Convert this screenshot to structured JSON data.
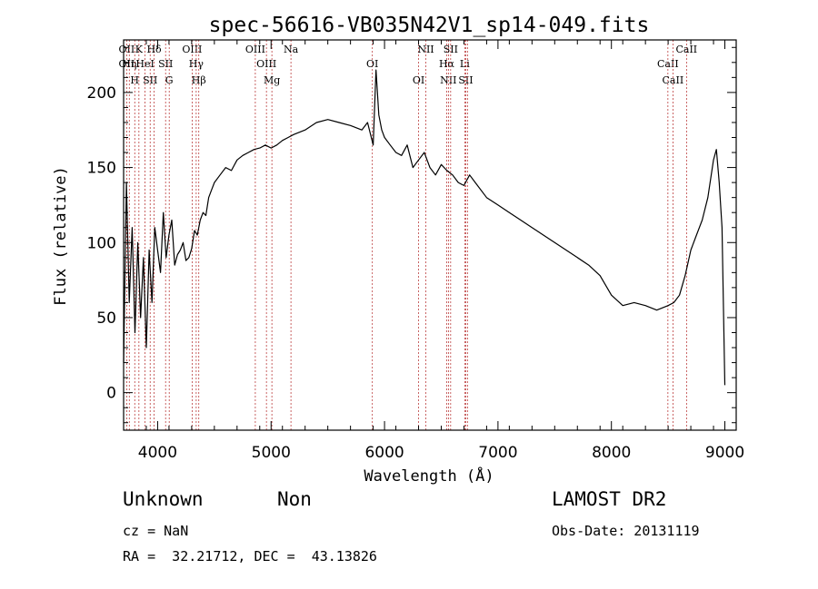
{
  "chart_data": {
    "type": "line",
    "title": "spec-56616-VB035N42V1_sp14-049.fits",
    "xlabel": "Wavelength (Å)",
    "ylabel": "Flux (relative)",
    "xlim": [
      3700,
      9100
    ],
    "ylim": [
      -25,
      235
    ],
    "xticks": [
      4000,
      5000,
      6000,
      7000,
      8000,
      9000
    ],
    "yticks": [
      0,
      50,
      100,
      150,
      200
    ],
    "grid": false,
    "series": [
      {
        "values_x": [
          3700,
          3725,
          3750,
          3775,
          3800,
          3825,
          3850,
          3875,
          3900,
          3925,
          3950,
          3975,
          4000,
          4025,
          4050,
          4075,
          4100,
          4125,
          4150,
          4175,
          4200,
          4225,
          4250,
          4275,
          4300,
          4325,
          4350,
          4375,
          4400,
          4425,
          4450,
          4475,
          4500,
          4550,
          4600,
          4650,
          4700,
          4750,
          4800,
          4850,
          4900,
          4950,
          5000,
          5050,
          5100,
          5150,
          5200,
          5300,
          5400,
          5500,
          5600,
          5700,
          5800,
          5850,
          5900,
          5925,
          5950,
          5975,
          6000,
          6050,
          6100,
          6150,
          6200,
          6250,
          6300,
          6350,
          6400,
          6450,
          6500,
          6550,
          6600,
          6650,
          6700,
          6750,
          6800,
          6900,
          7000,
          7100,
          7200,
          7300,
          7400,
          7500,
          7600,
          7700,
          7800,
          7900,
          8000,
          8100,
          8200,
          8300,
          8400,
          8500,
          8550,
          8600,
          8650,
          8700,
          8750,
          8800,
          8850,
          8900,
          8925,
          8950,
          8975,
          9000
        ],
        "values_y": [
          20,
          140,
          60,
          110,
          40,
          100,
          50,
          90,
          30,
          95,
          60,
          110,
          95,
          80,
          120,
          90,
          105,
          115,
          85,
          92,
          95,
          100,
          88,
          90,
          96,
          108,
          105,
          115,
          120,
          118,
          130,
          135,
          140,
          145,
          150,
          148,
          155,
          158,
          160,
          162,
          163,
          165,
          163,
          165,
          168,
          170,
          172,
          175,
          180,
          182,
          180,
          178,
          175,
          180,
          165,
          215,
          185,
          175,
          170,
          165,
          160,
          158,
          165,
          150,
          155,
          160,
          150,
          145,
          152,
          148,
          145,
          140,
          138,
          145,
          140,
          130,
          125,
          120,
          115,
          110,
          105,
          100,
          95,
          90,
          85,
          78,
          65,
          58,
          60,
          58,
          55,
          58,
          60,
          65,
          78,
          95,
          105,
          115,
          130,
          155,
          162,
          140,
          110,
          5
        ]
      }
    ],
    "lines": [
      {
        "wl": 3727,
        "labels": [
          "OII",
          "OII"
        ]
      },
      {
        "wl": 3750,
        "labels": [
          "Hη"
        ]
      },
      {
        "wl": 3798,
        "labels": [
          "H"
        ]
      },
      {
        "wl": 3835,
        "labels": [
          "K"
        ]
      },
      {
        "wl": 3889,
        "labels": [
          "HeI"
        ]
      },
      {
        "wl": 3934,
        "labels": [
          "SII"
        ]
      },
      {
        "wl": 3969,
        "labels": [
          "Hδ"
        ]
      },
      {
        "wl": 4070,
        "labels": [
          "SII"
        ]
      },
      {
        "wl": 4102,
        "labels": [
          "G"
        ]
      },
      {
        "wl": 4304,
        "labels": [
          "OIII"
        ]
      },
      {
        "wl": 4340,
        "labels": [
          "Hγ"
        ]
      },
      {
        "wl": 4363,
        "labels": [
          "Hβ"
        ]
      },
      {
        "wl": 4861,
        "labels": [
          "OIII"
        ]
      },
      {
        "wl": 4959,
        "labels": [
          "OIII"
        ]
      },
      {
        "wl": 5007,
        "labels": [
          "Mg"
        ]
      },
      {
        "wl": 5175,
        "labels": [
          "Na"
        ]
      },
      {
        "wl": 5893,
        "labels": [
          "OI"
        ]
      },
      {
        "wl": 6300,
        "labels": [
          "OI"
        ]
      },
      {
        "wl": 6364,
        "labels": [
          "NII"
        ]
      },
      {
        "wl": 6548,
        "labels": [
          "Hα"
        ]
      },
      {
        "wl": 6563,
        "labels": [
          "NII"
        ]
      },
      {
        "wl": 6583,
        "labels": [
          "SII"
        ]
      },
      {
        "wl": 6707,
        "labels": [
          "Li"
        ]
      },
      {
        "wl": 6716,
        "labels": [
          "SII"
        ]
      },
      {
        "wl": 6731,
        "labels": []
      },
      {
        "wl": 8498,
        "labels": [
          "CaII"
        ]
      },
      {
        "wl": 8542,
        "labels": [
          "CaII"
        ]
      },
      {
        "wl": 8662,
        "labels": [
          "CaII"
        ]
      }
    ]
  },
  "info": {
    "class": "Unknown",
    "subclass": "Non",
    "survey": "LAMOST DR2",
    "cz": "cz = NaN",
    "obs_date": "Obs-Date: 20131119",
    "coords": "RA =  32.21712, DEC =  43.13826"
  }
}
